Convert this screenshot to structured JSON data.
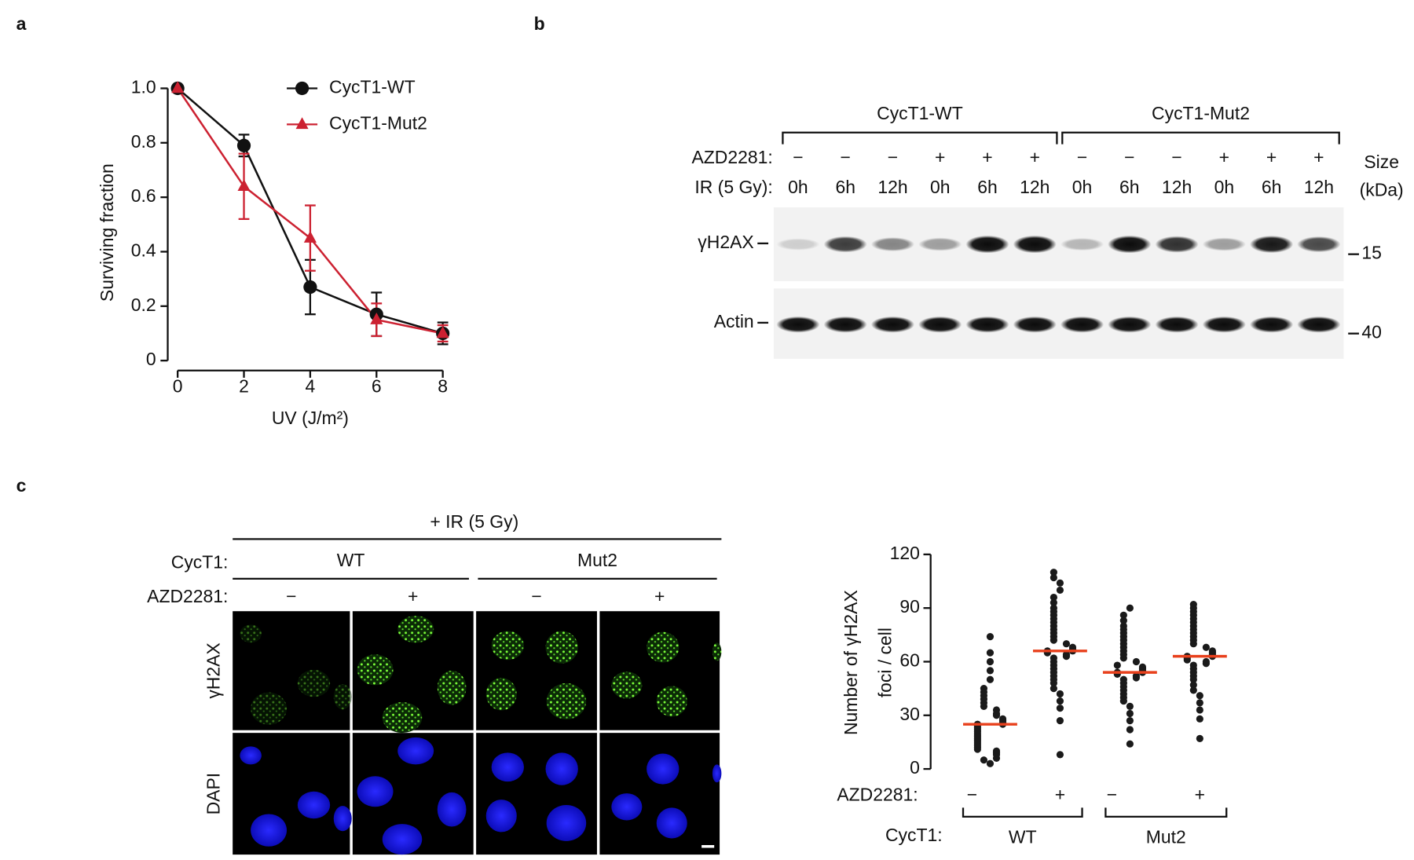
{
  "panel_labels": [
    "a",
    "b",
    "c"
  ],
  "chart_data": [
    {
      "type": "line",
      "xlabel": "UV (J/m²)",
      "ylabel": "Surviving fraction",
      "x": [
        0,
        2,
        4,
        6,
        8
      ],
      "xlim": [
        0,
        8
      ],
      "xticks": [
        0,
        2,
        4,
        6,
        8
      ],
      "ylim": [
        0,
        1
      ],
      "yticks": [
        0,
        0.2,
        0.4,
        0.6,
        0.8,
        {
          "value": 1,
          "label": "1.0"
        }
      ],
      "legend": "upper right",
      "series": [
        {
          "name": "CycT1-WT",
          "color": "#111111",
          "marker": "circle",
          "values": [
            1.0,
            0.79,
            0.27,
            0.17,
            0.1
          ],
          "errors": [
            0.01,
            0.04,
            0.1,
            0.08,
            0.04
          ]
        },
        {
          "name": "CycT1-Mut2",
          "color": "#cc2131",
          "marker": "triangle",
          "values": [
            1.0,
            0.64,
            0.45,
            0.15,
            0.1
          ],
          "errors": [
            0.01,
            0.12,
            0.12,
            0.06,
            0.03
          ]
        }
      ]
    },
    {
      "type": "strip",
      "ylabel": [
        "Number of γH2AX",
        "foci / cell"
      ],
      "ylim": [
        0,
        120
      ],
      "yticks": [
        0,
        30,
        60,
        90,
        120
      ],
      "category_label": "AZD2281:",
      "categories": [
        "−",
        "+",
        "−",
        "+"
      ],
      "group_label": "CycT1:",
      "groups": [
        "WT",
        "Mut2"
      ],
      "color": "#1a1a1a",
      "median_color": "#e8401c",
      "series": [
        {
          "median": 25,
          "values": [
            3,
            5,
            6,
            8,
            9,
            10,
            11,
            12,
            13,
            14,
            15,
            16,
            17,
            18,
            19,
            20,
            21,
            22,
            23,
            24,
            25,
            25,
            26,
            27,
            28,
            30,
            31,
            33,
            35,
            37,
            39,
            41,
            43,
            45,
            50,
            55,
            60,
            65,
            74
          ]
        },
        {
          "median": 66,
          "values": [
            8,
            27,
            34,
            38,
            42,
            45,
            48,
            50,
            52,
            54,
            56,
            58,
            60,
            62,
            63,
            64,
            65,
            66,
            66,
            67,
            68,
            70,
            72,
            74,
            76,
            78,
            80,
            82,
            84,
            86,
            88,
            90,
            93,
            96,
            100,
            104,
            107,
            110
          ]
        },
        {
          "median": 54,
          "values": [
            14,
            22,
            27,
            31,
            35,
            38,
            40,
            42,
            44,
            46,
            48,
            50,
            51,
            52,
            53,
            54,
            54,
            55,
            56,
            57,
            58,
            60,
            62,
            64,
            66,
            68,
            70,
            72,
            74,
            76,
            78,
            80,
            83,
            86,
            90
          ]
        },
        {
          "median": 63,
          "values": [
            17,
            28,
            33,
            37,
            41,
            44,
            47,
            50,
            52,
            54,
            56,
            58,
            59,
            60,
            61,
            62,
            63,
            63,
            64,
            65,
            66,
            68,
            70,
            72,
            74,
            76,
            78,
            80,
            82,
            84,
            86,
            88,
            90,
            92
          ]
        }
      ]
    }
  ],
  "blot": {
    "groups": [
      "CycT1-WT",
      "CycT1-Mut2"
    ],
    "rows": [
      {
        "label": "AZD2281:",
        "lanes": [
          "−",
          "−",
          "−",
          "+",
          "+",
          "+",
          "−",
          "−",
          "−",
          "+",
          "+",
          "+"
        ]
      },
      {
        "label": "IR (5 Gy):",
        "lanes": [
          "0h",
          "6h",
          "12h",
          "0h",
          "6h",
          "12h",
          "0h",
          "6h",
          "12h",
          "0h",
          "6h",
          "12h"
        ]
      }
    ],
    "size_header": [
      "Size",
      "(kDa)"
    ],
    "bands": [
      {
        "label": "γH2AX",
        "marker": "15"
      },
      {
        "label": "Actin",
        "marker": "40"
      }
    ]
  },
  "imaging": {
    "condition": "+ IR (5 Gy)",
    "group_label": "CycT1:",
    "groups": [
      "WT",
      "Mut2"
    ],
    "treatment_label": "AZD2281:",
    "treatments": [
      "−",
      "+",
      "−",
      "+"
    ],
    "channels": [
      "γH2AX",
      "DAPI"
    ]
  }
}
